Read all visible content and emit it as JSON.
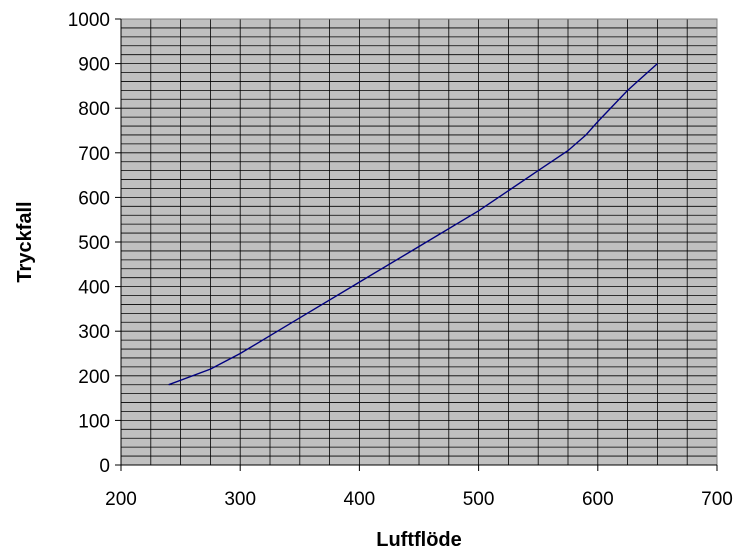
{
  "chart_data": {
    "type": "line",
    "title": "",
    "xlabel": "Luftflöde",
    "ylabel": "Tryckfall",
    "xlim": [
      200,
      700
    ],
    "ylim": [
      0,
      1000
    ],
    "x_ticks": [
      200,
      300,
      400,
      500,
      600,
      700
    ],
    "y_ticks": [
      0,
      100,
      200,
      300,
      400,
      500,
      600,
      700,
      800,
      900,
      1000
    ],
    "x_tick_labels": [
      "200",
      "300",
      "400",
      "500",
      "600",
      "700"
    ],
    "y_tick_labels": [
      "0",
      "100",
      "200",
      "300",
      "400",
      "500",
      "600",
      "700",
      "800",
      "900",
      "1000"
    ],
    "x_minor_step": 25,
    "y_minor_step": 20,
    "grid": true,
    "legend": "none",
    "plot_background": "#c0c0c0",
    "gridline_color": "#000000",
    "series": [
      {
        "color": "#000080",
        "x": [
          240,
          275,
          300,
          325,
          350,
          400,
          450,
          500,
          550,
          575,
          590,
          600,
          625,
          650
        ],
        "y": [
          180,
          215,
          250,
          290,
          330,
          410,
          490,
          570,
          660,
          705,
          740,
          770,
          840,
          900
        ]
      }
    ]
  }
}
